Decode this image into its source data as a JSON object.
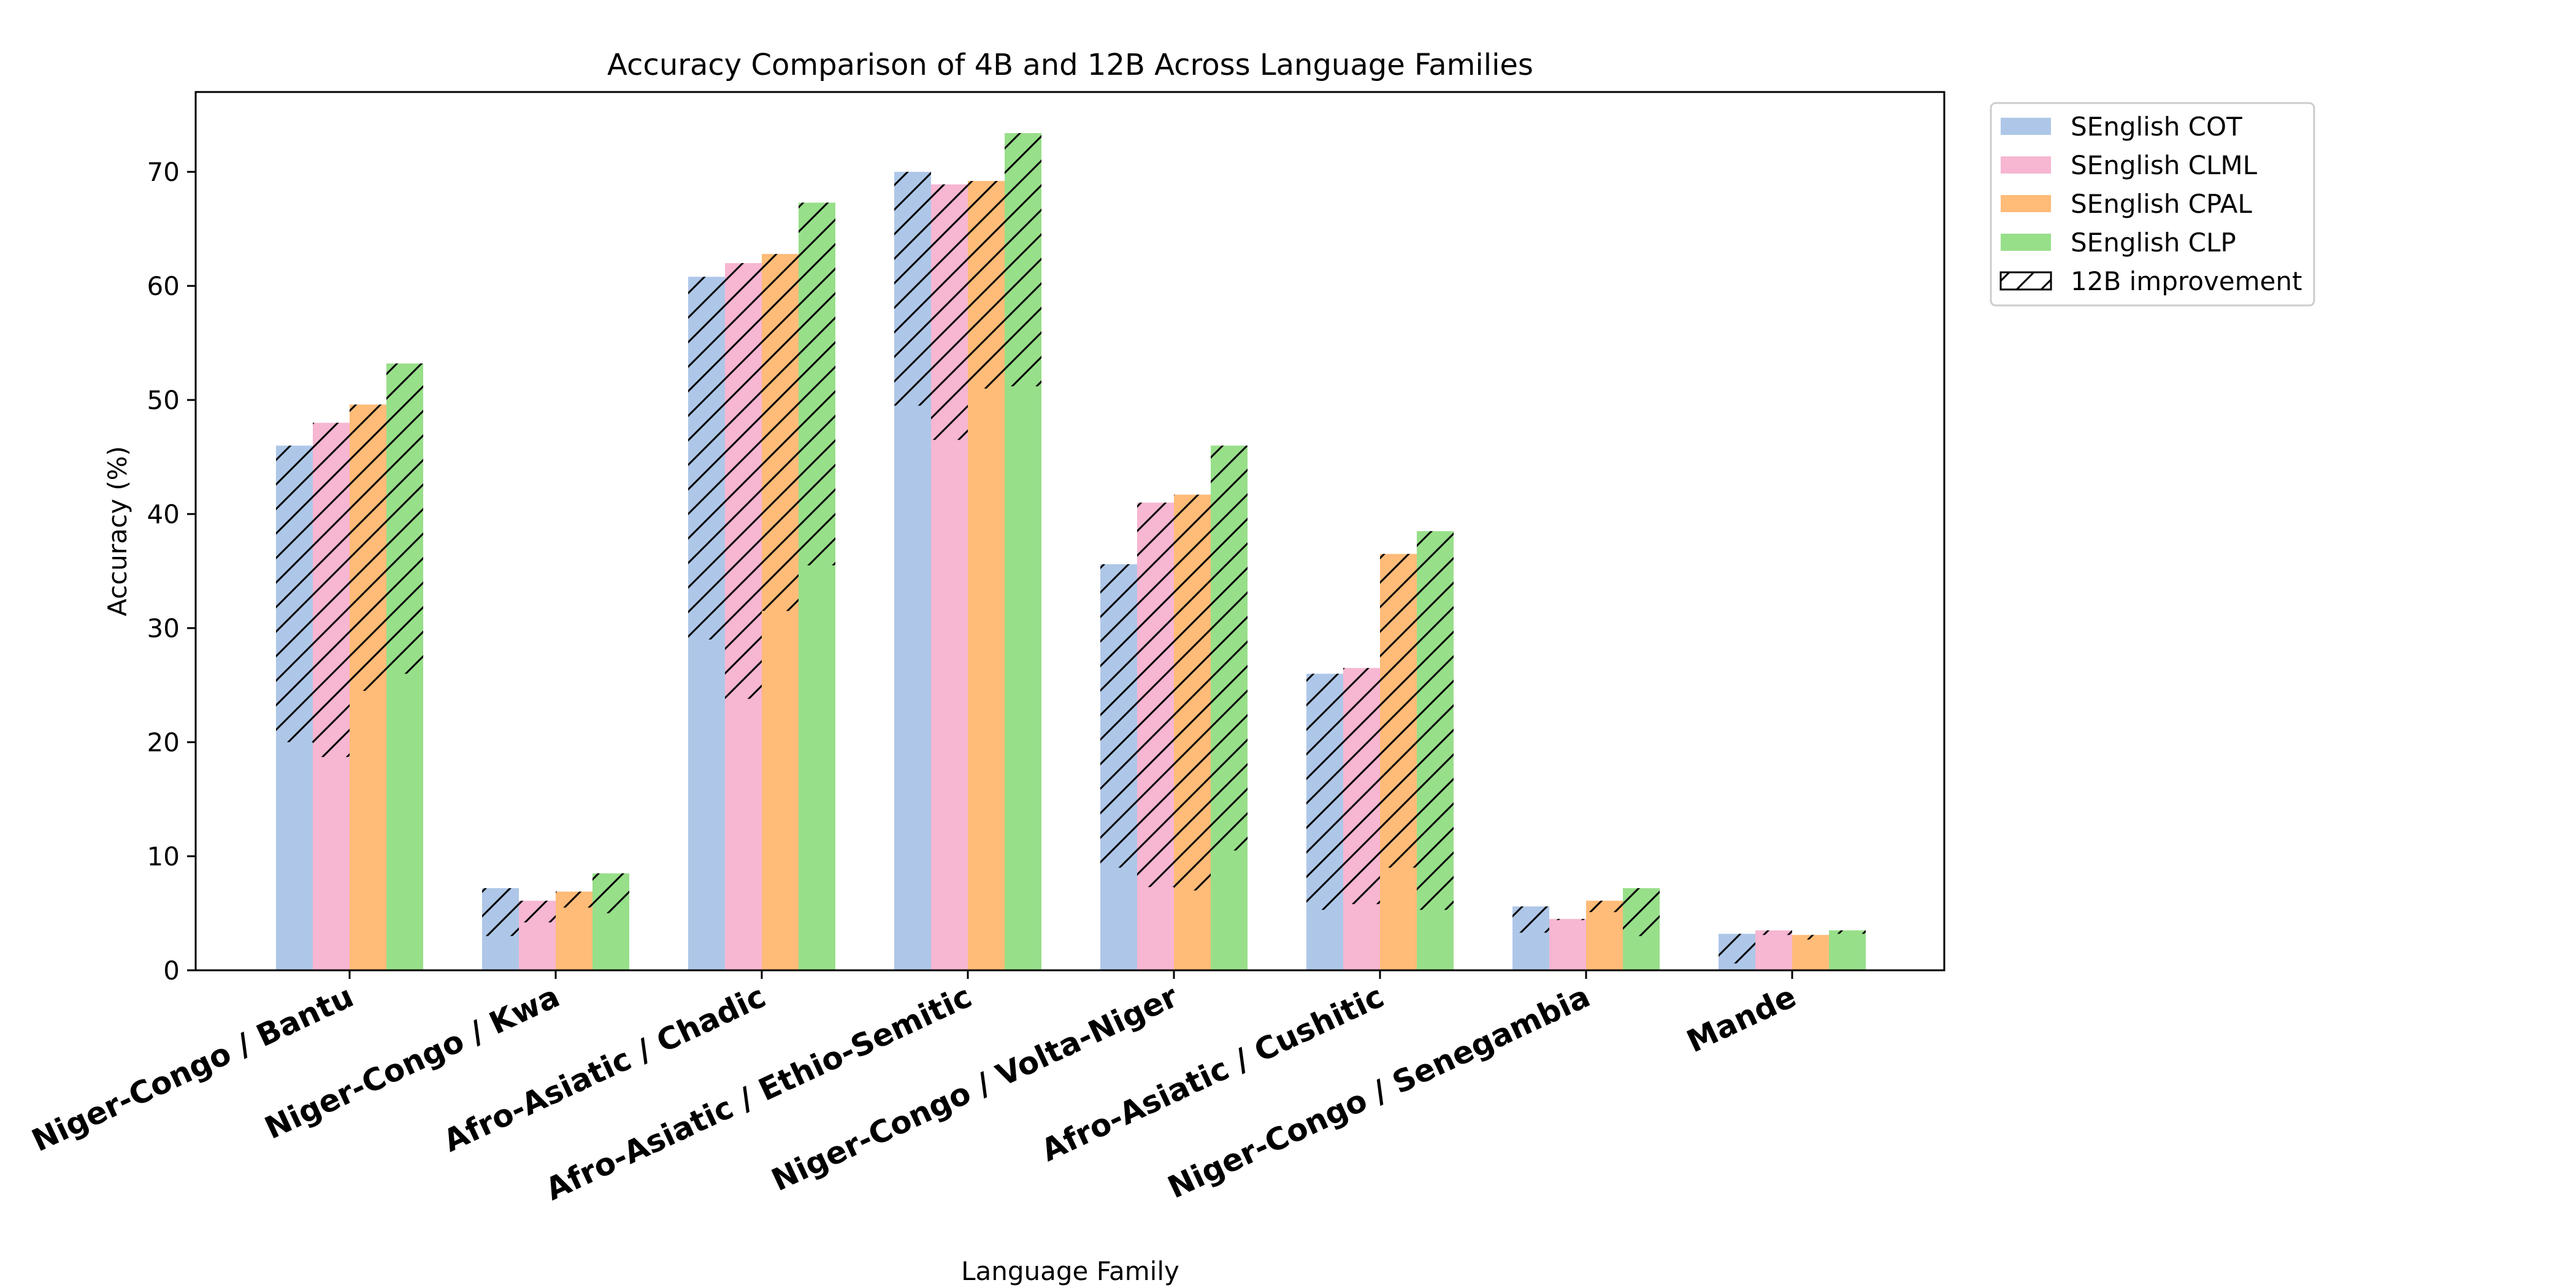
{
  "chart_data": {
    "type": "bar",
    "title": "Accuracy Comparison of 4B and 12B Across Language Families",
    "xlabel": "Language Family",
    "ylabel": "Accuracy (%)",
    "ylim": [
      0,
      77
    ],
    "yticks": [
      0,
      10,
      20,
      30,
      40,
      50,
      60,
      70
    ],
    "grid": false,
    "legend_position": "outside-top-right",
    "categories": [
      "Niger-Congo / Bantu",
      "Niger-Congo / Kwa",
      "Afro-Asiatic / Chadic",
      "Afro-Asiatic / Ethio-Semitic",
      "Niger-Congo / Volta-Niger",
      "Afro-Asiatic / Cushitic",
      "Niger-Congo / Senegambia",
      "Mande"
    ],
    "series": [
      {
        "name": "SEnglish COT",
        "color": "#aec7e8",
        "values_4b": [
          20.0,
          3.0,
          29.0,
          49.5,
          9.0,
          5.3,
          3.3,
          0.6
        ],
        "values_12b": [
          46.0,
          7.2,
          60.8,
          70.0,
          35.6,
          26.0,
          5.6,
          3.2
        ]
      },
      {
        "name": "SEnglish CLML",
        "color": "#f7b6d2",
        "values_4b": [
          18.7,
          4.2,
          23.8,
          46.5,
          7.3,
          5.8,
          4.4,
          3.1
        ],
        "values_12b": [
          48.0,
          6.1,
          62.0,
          68.9,
          41.0,
          26.5,
          4.5,
          3.5
        ]
      },
      {
        "name": "SEnglish CPAL",
        "color": "#ffbb78",
        "values_4b": [
          24.5,
          5.5,
          31.5,
          51.0,
          7.0,
          9.0,
          5.1,
          2.7
        ],
        "values_12b": [
          49.6,
          6.9,
          62.8,
          69.2,
          41.7,
          36.5,
          6.1,
          3.1
        ]
      },
      {
        "name": "SEnglish CLP",
        "color": "#98df8a",
        "values_4b": [
          26.0,
          5.0,
          35.5,
          51.2,
          10.5,
          5.3,
          3.0,
          3.2
        ],
        "values_12b": [
          53.2,
          8.5,
          67.3,
          73.4,
          46.0,
          38.5,
          7.2,
          3.5
        ]
      }
    ],
    "legend_entries": [
      {
        "label": "SEnglish COT",
        "kind": "color",
        "color": "#aec7e8"
      },
      {
        "label": "SEnglish CLML",
        "kind": "color",
        "color": "#f7b6d2"
      },
      {
        "label": "SEnglish CPAL",
        "kind": "color",
        "color": "#ffbb78"
      },
      {
        "label": "SEnglish CLP",
        "kind": "color",
        "color": "#98df8a"
      },
      {
        "label": "12B improvement",
        "kind": "hatch",
        "color": "#ffffff"
      }
    ]
  }
}
